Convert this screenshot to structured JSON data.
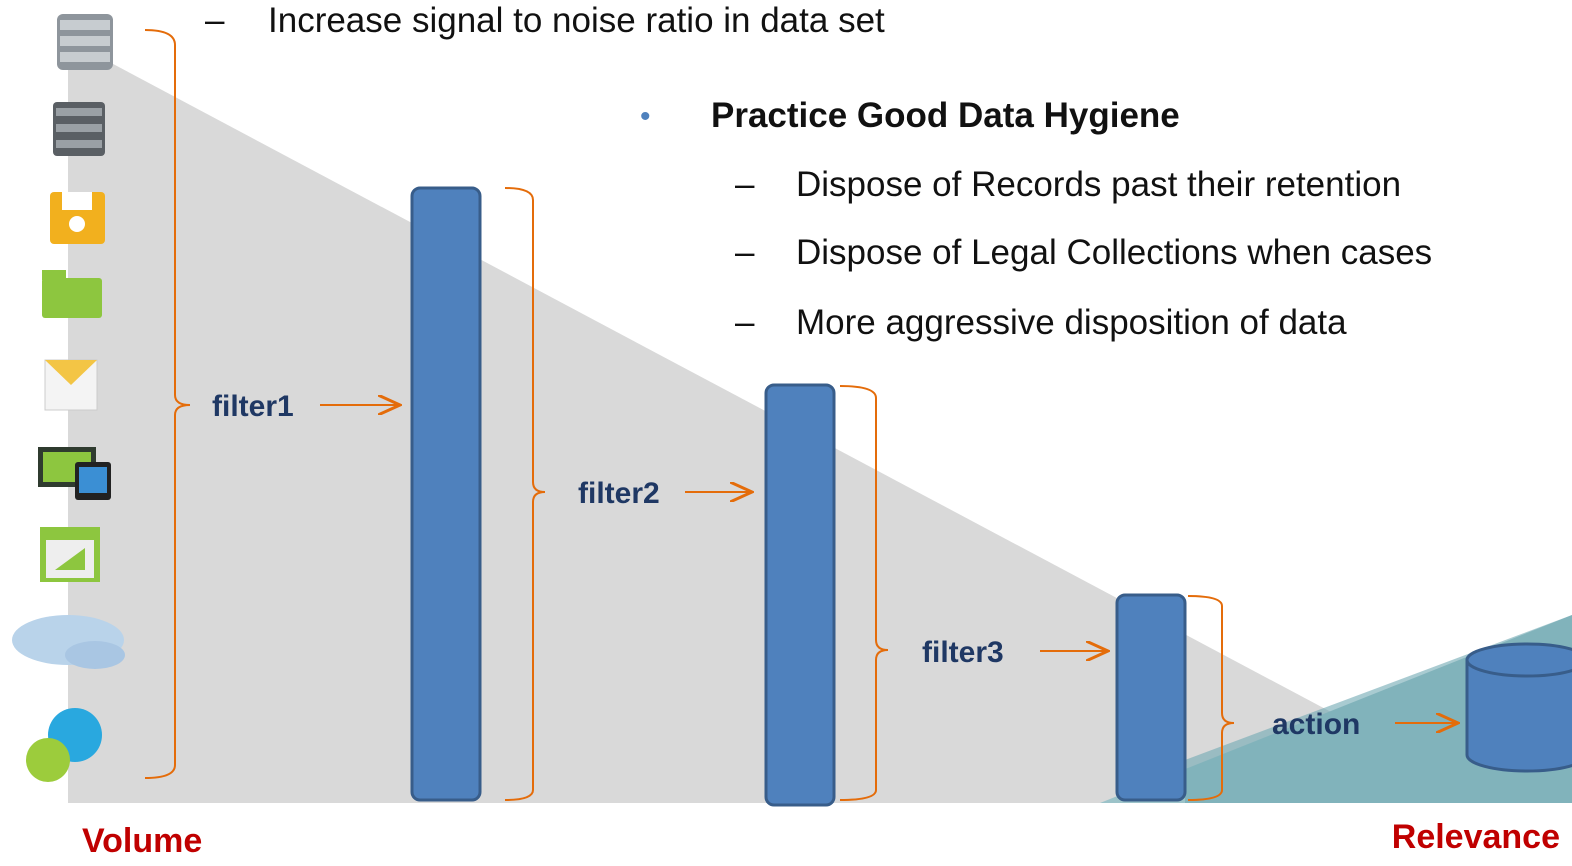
{
  "bullets": {
    "top": "Increase signal to noise ratio in data set",
    "heading": "Practice Good Data Hygiene",
    "items": [
      "Dispose of Records past their retention",
      "Dispose of Legal Collections when cases",
      "More aggressive disposition of data"
    ]
  },
  "filters": [
    "filter1",
    "filter2",
    "filter3",
    "action"
  ],
  "axis": {
    "left": "Volume",
    "right": "Relevance"
  }
}
